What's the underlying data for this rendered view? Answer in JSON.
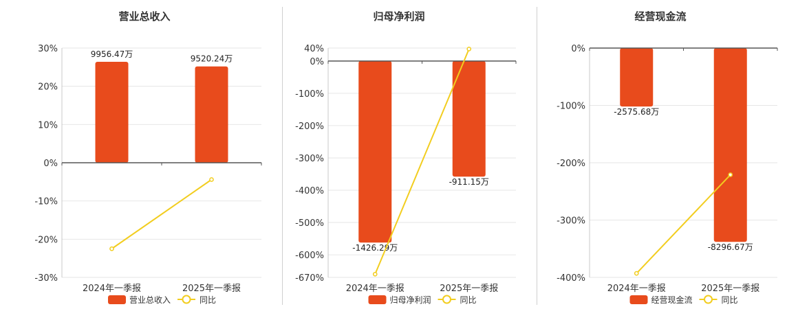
{
  "chart_data": [
    {
      "type": "bar",
      "title": "营业总收入",
      "categories": [
        "2024年一季报",
        "2025年一季报"
      ],
      "series": [
        {
          "name": "营业总收入",
          "type": "bar",
          "values": [
            26.4,
            25.2
          ],
          "labels": [
            "9956.47万",
            "9520.24万"
          ]
        },
        {
          "name": "同比",
          "type": "line",
          "values": [
            -22.5,
            -4.4
          ]
        }
      ],
      "yticks": [
        "30%",
        "20%",
        "10%",
        "0%",
        "-10%",
        "-20%",
        "-30%"
      ],
      "ylim": [
        -30,
        30
      ],
      "grid": true,
      "legend": "bottom"
    },
    {
      "type": "bar",
      "title": "归母净利润",
      "categories": [
        "2024年一季报",
        "2025年一季报"
      ],
      "series": [
        {
          "name": "归母净利润",
          "type": "bar",
          "values": [
            -562,
            -358
          ],
          "labels": [
            "-1426.29万",
            "-911.15万"
          ]
        },
        {
          "name": "同比",
          "type": "line",
          "values": [
            -660,
            37
          ]
        }
      ],
      "yticks": [
        "40%",
        "0%",
        "-100%",
        "-200%",
        "-300%",
        "-400%",
        "-500%",
        "-600%",
        "-670%"
      ],
      "ylim": [
        -670,
        40
      ],
      "grid": true,
      "legend": "bottom"
    },
    {
      "type": "bar",
      "title": "经营现金流",
      "categories": [
        "2024年一季报",
        "2025年一季报"
      ],
      "series": [
        {
          "name": "经营现金流",
          "type": "bar",
          "values": [
            -102,
            -338
          ],
          "labels": [
            "-2575.68万",
            "-8296.67万"
          ]
        },
        {
          "name": "同比",
          "type": "line",
          "values": [
            -393,
            -221
          ]
        }
      ],
      "yticks": [
        "0%",
        "-100%",
        "-200%",
        "-300%",
        "-400%"
      ],
      "ylim": [
        -400,
        0
      ],
      "grid": true,
      "legend": "bottom"
    }
  ],
  "colors": {
    "bar": "#e84b1c",
    "line": "#f2cd1f",
    "axis": "#555555",
    "grid": "#e6e6e6",
    "text": "#333333"
  }
}
